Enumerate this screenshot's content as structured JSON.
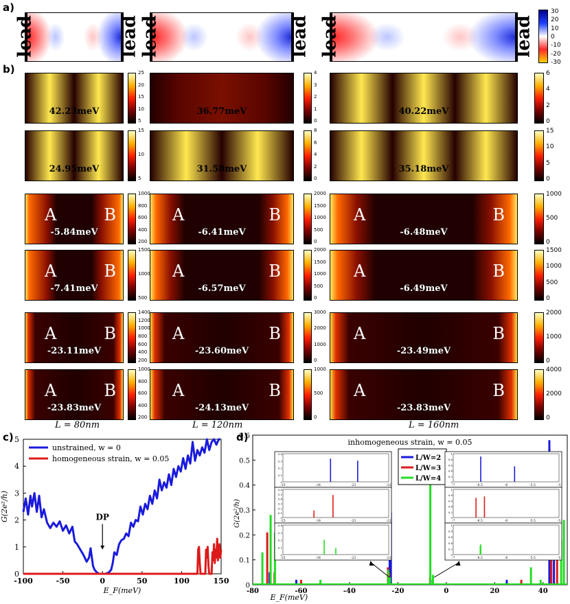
{
  "panel_labels": {
    "a": "a)",
    "b": "b)",
    "c": "c)",
    "d": "d)"
  },
  "lead_label": "lead",
  "strain_colorbar_ticks": [
    "30",
    "20",
    "10",
    "0",
    "-10",
    "-20",
    "-30"
  ],
  "energies": [
    [
      "42.23meV",
      "36.77meV",
      "40.22meV"
    ],
    [
      "24.95meV",
      "31.58meV",
      "35.18meV"
    ],
    [
      "-5.84meV",
      "-6.41meV",
      "-6.48meV"
    ],
    [
      "-7.41meV",
      "-6.57meV",
      "-6.49meV"
    ],
    [
      "-23.11meV",
      "-23.60meV",
      "-23.49meV"
    ],
    [
      "-23.83meV",
      "-24.13meV",
      "-23.83meV"
    ]
  ],
  "site_labels": {
    "left": "A",
    "right": "B"
  },
  "colorbar_ticks": [
    [
      [
        "25",
        "20",
        "15",
        "10",
        "5"
      ],
      [
        "4",
        "3",
        "2",
        "1",
        "0"
      ],
      [
        "6",
        "4",
        "2",
        "0"
      ]
    ],
    [
      [
        "15",
        "10",
        "5"
      ],
      [
        "8",
        "6",
        "4",
        "2",
        "0"
      ],
      [
        "15",
        "10",
        "5",
        "0"
      ]
    ],
    [
      [
        "1000",
        "800",
        "600",
        "400",
        "200"
      ],
      [
        "2000",
        "1500",
        "1000",
        "500",
        "0"
      ],
      [
        "1000",
        "500",
        "0"
      ]
    ],
    [
      [
        "1500",
        "1000",
        "500"
      ],
      [
        "2000",
        "1500",
        "1000",
        "500",
        "0"
      ],
      [
        "1500",
        "1000",
        "500",
        "0"
      ]
    ],
    [
      [
        "1400",
        "1200",
        "1000",
        "800",
        "600",
        "400",
        "200"
      ],
      [
        "3000",
        "2000",
        "1000",
        "0"
      ],
      [
        "2000",
        "1000",
        "0"
      ]
    ],
    [
      [
        "1000",
        "800",
        "600",
        "400",
        "200"
      ],
      [
        "1000",
        "500",
        "0"
      ],
      [
        "4000",
        "2000",
        "0"
      ]
    ]
  ],
  "lengths": [
    "L = 80nm",
    "L = 120nm",
    "L = 160nm"
  ],
  "chart_data": [
    {
      "type": "line",
      "panel": "c",
      "xlabel": "E_F(meV)",
      "ylabel": "G(2e²/h)",
      "xlim": [
        -100,
        150
      ],
      "ylim": [
        0,
        5
      ],
      "xticks": [
        "-100",
        "-50",
        "0",
        "50",
        "100",
        "150"
      ],
      "yticks": [
        "0",
        "1",
        "2",
        "3",
        "4",
        "5"
      ],
      "annotation": "DP",
      "series": [
        {
          "name": "unstrained, w = 0",
          "color": "#1a1adc",
          "x": [
            -100,
            -97,
            -94,
            -91,
            -89,
            -86,
            -83,
            -80,
            -77,
            -74,
            -70,
            -66,
            -62,
            -58,
            -54,
            -50,
            -46,
            -42,
            -38,
            -35,
            -32,
            -28,
            -24,
            -20,
            -17,
            -15,
            -12,
            -10,
            -7,
            -4,
            0,
            4,
            8,
            11,
            13,
            15,
            18,
            21,
            24,
            27,
            30,
            33,
            36,
            39,
            42,
            45,
            48,
            51,
            54,
            57,
            60,
            63,
            66,
            69,
            72,
            75,
            78,
            81,
            84,
            87,
            90,
            93,
            96,
            99,
            102,
            105,
            108,
            111,
            114,
            117,
            120,
            123,
            126,
            129,
            132,
            135,
            138,
            141,
            144,
            147,
            149
          ],
          "y": [
            2.3,
            2.8,
            2.2,
            2.9,
            2.5,
            3.0,
            2.3,
            2.9,
            2.1,
            2.4,
            1.9,
            1.7,
            1.9,
            1.75,
            1.95,
            1.6,
            1.8,
            1.5,
            1.75,
            1.2,
            1.1,
            0.9,
            0.7,
            0.45,
            0.6,
            0.95,
            0.3,
            0.15,
            0.05,
            0.0,
            0.0,
            0.0,
            0.05,
            0.15,
            0.4,
            0.8,
            0.7,
            1.1,
            1.25,
            1.3,
            1.5,
            1.4,
            1.9,
            1.75,
            2.0,
            1.95,
            2.5,
            2.2,
            2.6,
            2.4,
            2.9,
            2.6,
            3.1,
            2.8,
            3.5,
            3.1,
            3.4,
            3.2,
            3.7,
            3.3,
            3.9,
            3.6,
            4.0,
            3.8,
            4.3,
            3.9,
            4.4,
            4.1,
            4.9,
            4.2,
            4.6,
            4.4,
            4.7,
            4.5,
            5.0,
            4.6,
            4.9,
            5.0,
            4.8,
            5.0,
            5.0
          ]
        },
        {
          "name": "homogeneous strain, w = 0.05",
          "color": "#dd1a1a",
          "x": [
            -100,
            118,
            120,
            121,
            122,
            123,
            124,
            130,
            131,
            132,
            133,
            134,
            135,
            138,
            139,
            140,
            141,
            142,
            143,
            144,
            145,
            146,
            147,
            148,
            149,
            150
          ],
          "y": [
            0,
            0,
            0,
            0.9,
            1.0,
            0.4,
            0,
            0,
            0.9,
            0.6,
            1.0,
            0.3,
            0,
            0,
            0.8,
            0.5,
            1.1,
            0.4,
            0.9,
            0.6,
            1.3,
            0.5,
            0.8,
            1.1,
            0.6,
            0.9
          ]
        }
      ]
    },
    {
      "type": "line",
      "panel": "d",
      "title": "inhomogeneous strain, w = 0.05",
      "xlabel": "E_F(meV)",
      "ylabel": "G(2e²/h)",
      "xlim": [
        -80,
        50
      ],
      "ylim": [
        0,
        0.6
      ],
      "xticks": [
        "-80",
        "-60",
        "-40",
        "-20",
        "0",
        "20",
        "40"
      ],
      "yticks": [
        "0",
        "0.1",
        "0.2",
        "0.3",
        "0.4",
        "0.5",
        "0.6"
      ],
      "series": [
        {
          "name": "L/W=2",
          "color": "#1a1adc",
          "peaks": [
            [
              -73,
              0.05
            ],
            [
              -62,
              0.02
            ],
            [
              -23.4,
              0.31
            ],
            [
              -22.9,
              0.29
            ],
            [
              -5.6,
              0.02
            ],
            [
              25,
              0.02
            ],
            [
              42.6,
              0.58
            ],
            [
              44.5,
              0.14
            ]
          ]
        },
        {
          "name": "L/W=3",
          "color": "#dd1a1a",
          "peaks": [
            [
              -74,
              0.21
            ],
            [
              -71,
              0.05
            ],
            [
              -60,
              0.02
            ],
            [
              -24.1,
              0.07
            ],
            [
              -23.6,
              0.05
            ],
            [
              -6.7,
              0.03
            ],
            [
              31,
              0.02
            ],
            [
              43.4,
              0.53
            ],
            [
              45.8,
              0.36
            ]
          ]
        },
        {
          "name": "L/W=4",
          "color": "#22dd22",
          "peaks": [
            [
              -76,
              0.13
            ],
            [
              -72.6,
              0.28
            ],
            [
              -70.8,
              0.21
            ],
            [
              -52,
              0.02
            ],
            [
              -24.0,
              0.06
            ],
            [
              -23.3,
              0.03
            ],
            [
              -6.6,
              0.44
            ],
            [
              -5.5,
              0.04
            ],
            [
              35,
              0.07
            ],
            [
              39,
              0.02
            ],
            [
              48.6,
              0.26
            ],
            [
              47.5,
              0.18
            ]
          ]
        }
      ],
      "insets": [
        {
          "xlim": [
            -25,
            -22
          ],
          "ylim": [
            0,
            0.4
          ],
          "xticks": [
            "-25",
            "-24",
            "-23",
            "-22"
          ],
          "yticks": [
            "0",
            "0.1",
            "0.2",
            "0.3",
            "0.4"
          ],
          "color": "#1a1adc",
          "peaks": [
            [
              -23.65,
              0.33
            ],
            [
              -22.88,
              0.3
            ]
          ]
        },
        {
          "xlim": [
            -25,
            -22
          ],
          "ylim": [
            0,
            0.6
          ],
          "xticks": [
            "-25",
            "-24",
            "-23",
            "-22"
          ],
          "yticks": [
            "0",
            "0.1",
            "0.2",
            "0.3",
            "0.4",
            "0.5",
            "0.6"
          ],
          "color": "#dd1a1a",
          "peaks": [
            [
              -24.12,
              0.15
            ],
            [
              -23.58,
              0.48
            ]
          ]
        },
        {
          "xlim": [
            -25,
            -22
          ],
          "ylim": [
            0,
            0.4
          ],
          "xticks": [
            "-25",
            "-24",
            "-23",
            "-22"
          ],
          "yticks": [
            "0",
            "0.1",
            "0.2",
            "0.3",
            "0.4"
          ],
          "color": "#22dd22",
          "peaks": [
            [
              -23.83,
              0.2
            ],
            [
              -23.5,
              0.09
            ]
          ]
        },
        {
          "xlim": [
            -7,
            -5
          ],
          "ylim": [
            0,
            1
          ],
          "xticks": [
            "-7",
            "-6.5",
            "-6",
            "-5.5",
            "-5"
          ],
          "yticks": [
            "0",
            "0.2",
            "0.4",
            "0.6",
            "0.8",
            "1"
          ],
          "color": "#1a1adc",
          "peaks": [
            [
              -6.48,
              0.9
            ],
            [
              -5.84,
              0.55
            ]
          ]
        },
        {
          "xlim": [
            -7,
            -5
          ],
          "ylim": [
            0,
            1
          ],
          "xticks": [
            "-7",
            "-6.5",
            "-6",
            "-5.5",
            "-5"
          ],
          "yticks": [
            "0",
            "0.2",
            "0.4",
            "0.6",
            "0.8",
            "1"
          ],
          "color": "#dd1a1a",
          "peaks": [
            [
              -6.57,
              0.7
            ],
            [
              -6.41,
              0.75
            ]
          ]
        },
        {
          "xlim": [
            -7,
            -5
          ],
          "ylim": [
            0,
            1
          ],
          "xticks": [
            "-7",
            "-6.5",
            "-6",
            "-5.5",
            "-5"
          ],
          "yticks": [
            "0",
            "0.2",
            "0.4",
            "0.6",
            "0.8",
            "1"
          ],
          "color": "#22dd22",
          "peaks": [
            [
              -6.49,
              0.3
            ],
            [
              -6.48,
              0.35
            ]
          ]
        }
      ]
    }
  ]
}
